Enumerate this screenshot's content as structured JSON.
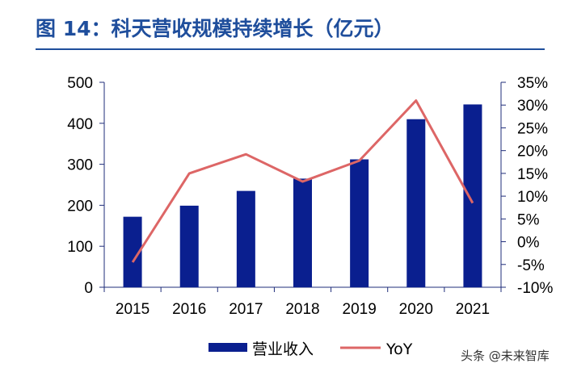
{
  "title": "图 14：科天营收规模持续增长（亿元）",
  "watermark": "头条 @未来智库",
  "colors": {
    "bar": "#0a1f8f",
    "line": "#dd6666",
    "title": "#1f4e9c",
    "axis": "#1f2d7a"
  },
  "chart_data": {
    "type": "bar+line",
    "categories": [
      "2015",
      "2016",
      "2017",
      "2018",
      "2019",
      "2020",
      "2021"
    ],
    "series": [
      {
        "name": "营业收入",
        "type": "bar",
        "axis": "left",
        "values": [
          172,
          199,
          235,
          265,
          312,
          410,
          446
        ]
      },
      {
        "name": "YoY",
        "type": "line",
        "axis": "right",
        "values": [
          -4.5,
          15.0,
          19.2,
          13.2,
          17.8,
          31.0,
          8.5
        ]
      }
    ],
    "y_left": {
      "min": 0,
      "max": 500,
      "ticks": [
        "0",
        "100",
        "200",
        "300",
        "400",
        "500"
      ]
    },
    "y_right": {
      "min": -10,
      "max": 35,
      "ticks": [
        "-10%",
        "-5%",
        "0%",
        "5%",
        "10%",
        "15%",
        "20%",
        "25%",
        "30%",
        "35%"
      ]
    },
    "legend": [
      "营业收入",
      "YoY"
    ],
    "legend_position": "bottom"
  }
}
